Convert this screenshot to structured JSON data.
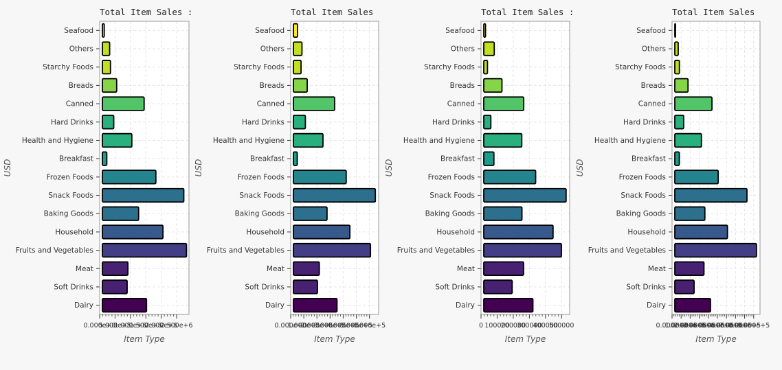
{
  "chart_data": [
    {
      "type": "bar",
      "orientation": "horizontal",
      "title": "Total Item Sales :",
      "xlabel": "Item Type",
      "ylabel": "USD",
      "categories": [
        "Dairy",
        "Soft Drinks",
        "Meat",
        "Fruits and Vegetables",
        "Household",
        "Baking Goods",
        "Snack Foods",
        "Frozen Foods",
        "Breakfast",
        "Health and Hygiene",
        "Hard Drinks",
        "Canned",
        "Breads",
        "Starchy Foods",
        "Others",
        "Seafood"
      ],
      "values": [
        1522594,
        892897,
        917565,
        2820060,
        2055494,
        1265525,
        2732786,
        1825735,
        232299,
        1045200,
        457793,
        1444151,
        553237,
        351401,
        325517,
        148868
      ],
      "xlim": [
        0,
        2900000
      ],
      "xticks": [
        0,
        500000,
        1000000,
        1500000,
        2000000,
        2500000
      ],
      "xtick_labels": [
        "0.000e+0",
        "5.000e+5",
        "1.000e+6",
        "1.500e+6",
        "2.000e+6",
        "2.500e+6"
      ],
      "grid": true,
      "legend": "none"
    },
    {
      "type": "bar",
      "orientation": "horizontal",
      "title": "Total Item Sales",
      "xlabel": "Item Type",
      "ylabel": "USD",
      "categories": [
        "Dairy",
        "Soft Drinks",
        "Meat",
        "Fruits and Vegetables",
        "Household",
        "Baking Goods",
        "Snack Foods",
        "Frozen Foods",
        "Breakfast",
        "Health and Hygiene",
        "Hard Drinks",
        "Canned",
        "Breads",
        "Starchy Foods",
        "Others",
        "Seafood"
      ],
      "values": [
        353000,
        204000,
        218000,
        608000,
        451000,
        277000,
        645000,
        423000,
        50000,
        246000,
        112000,
        335000,
        126000,
        79000,
        86000,
        52000
      ],
      "xlim": [
        0,
        670000
      ],
      "xticks": [
        0,
        100000,
        200000,
        300000,
        400000,
        500000,
        600000
      ],
      "xtick_labels": [
        "0.000e+0",
        "1.000e+5",
        "2.000e+5",
        "3.000e+5",
        "4.000e+5",
        "5.000e+5",
        "6.000e+5"
      ],
      "grid": true,
      "legend": "none"
    },
    {
      "type": "bar",
      "orientation": "horizontal",
      "title": "Total Item Sales :",
      "xlabel": "Item Type",
      "ylabel": "USD",
      "categories": [
        "Dairy",
        "Soft Drinks",
        "Meat",
        "Fruits and Vegetables",
        "Household",
        "Baking Goods",
        "Snack Foods",
        "Frozen Foods",
        "Breakfast",
        "Health and Hygiene",
        "Hard Drinks",
        "Canned",
        "Breads",
        "Starchy Foods",
        "Others",
        "Seafood"
      ],
      "values": [
        322000,
        193000,
        264000,
        499000,
        447000,
        254000,
        528000,
        339000,
        80000,
        253000,
        61000,
        265000,
        130000,
        40000,
        82000,
        28000
      ],
      "xlim": [
        0,
        550000
      ],
      "xticks": [
        0,
        100000,
        200000,
        300000,
        400000,
        500000
      ],
      "xtick_labels": [
        "0",
        "100000",
        "200000",
        "300000",
        "400000",
        "500000"
      ],
      "grid": true,
      "legend": "none"
    },
    {
      "type": "bar",
      "orientation": "horizontal",
      "title": "Total Item Sales",
      "xlabel": "Item Type",
      "ylabel": "USD",
      "categories": [
        "Dairy",
        "Soft Drinks",
        "Meat",
        "Fruits and Vegetables",
        "Household",
        "Baking Goods",
        "Snack Foods",
        "Frozen Foods",
        "Breakfast",
        "Health and Hygiene",
        "Hard Drinks",
        "Canned",
        "Breads",
        "Starchy Foods",
        "Others",
        "Seafood"
      ],
      "values": [
        424000,
        243000,
        352000,
        931000,
        611000,
        362000,
        826000,
        509000,
        80000,
        324000,
        128000,
        440000,
        176000,
        81000,
        68000,
        32000
      ],
      "xlim": [
        0,
        970000
      ],
      "xticks": [
        0,
        100000,
        200000,
        300000,
        400000,
        500000,
        600000,
        700000,
        800000,
        900000
      ],
      "xtick_labels": [
        "0.000e+0",
        "1.000e+5",
        "2.000e+5",
        "3.000e+5",
        "4.000e+5",
        "5.000e+5",
        "6.000e+5",
        "7.000e+5",
        "8.000e+5",
        "9.000e+5"
      ],
      "grid": true,
      "legend": "none"
    }
  ],
  "colors": {
    "bars": [
      "#440154",
      "#482173",
      "#433e85",
      "#38598c",
      "#2d708e",
      "#25858e",
      "#1e9b8a",
      "#2ab07f",
      "#52c569",
      "#86d549",
      "#c2df23",
      "#fde725"
    ],
    "background": "#f7f7f7",
    "plot_bg": "#ffffff",
    "grid": "#e6e6e6",
    "outline": "#000000"
  }
}
